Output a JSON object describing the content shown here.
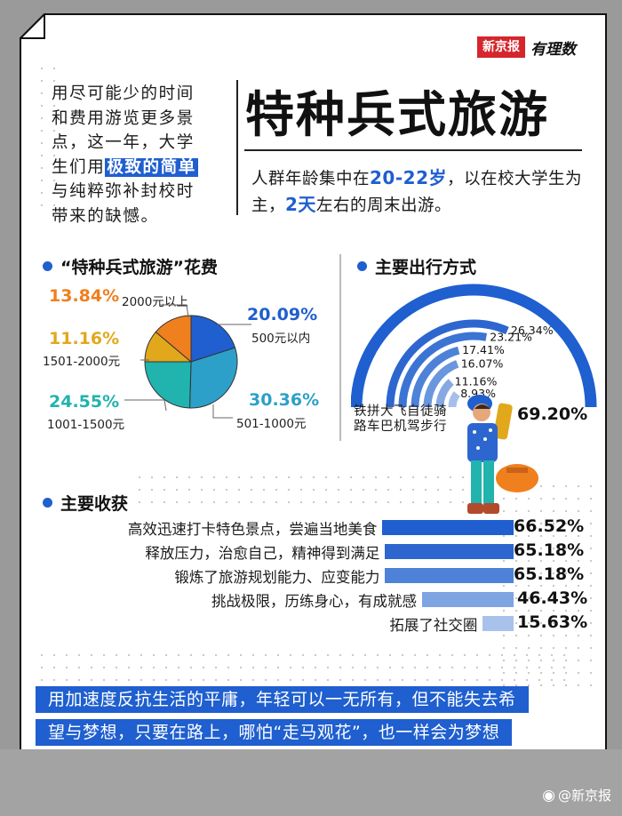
{
  "logo": {
    "brand": "新京报",
    "sub": "有理数"
  },
  "intro": {
    "lines": [
      "用尽可能少的时间",
      "和费用游览更多景",
      "点，这一年，大学"
    ],
    "line4_pre": "生们用",
    "line4_hl": "极致的简单",
    "lines_after": [
      "与纯粹弥补封校时",
      "带来的缺憾。"
    ]
  },
  "title": "特种兵式旅游",
  "subtitle": {
    "p1": "人群年龄集中在",
    "age": "20-22岁",
    "p2": "，以在校大学生为主，",
    "days": "2天",
    "p3": "左右的周末出游。"
  },
  "colors": {
    "blue": "#1f5fcf",
    "orange": "#f07f1e",
    "gold": "#e2a81c",
    "teal": "#21b3ae"
  },
  "spend": {
    "heading": "“特种兵式旅游”花费",
    "chart_data": {
      "type": "pie",
      "slices": [
        {
          "label": "500元以内",
          "value": 20.09,
          "display": "20.09%",
          "color": "#1f5fcf"
        },
        {
          "label": "501-1000元",
          "value": 30.36,
          "display": "30.36%",
          "color": "#2da0c9"
        },
        {
          "label": "1001-1500元",
          "value": 24.55,
          "display": "24.55%",
          "color": "#21b3ae"
        },
        {
          "label": "1501-2000元",
          "value": 11.16,
          "display": "11.16%",
          "color": "#e2a81c"
        },
        {
          "label": "2000元以上",
          "value": 13.84,
          "display": "13.84%",
          "color": "#f07f1e"
        }
      ]
    }
  },
  "travel": {
    "heading": "主要出行方式",
    "chart_data": {
      "type": "bar",
      "layout": "radial",
      "categories": [
        "铁",
        "拼",
        "大",
        "飞",
        "自",
        "徒",
        "骑",
        "路",
        "车",
        "巴",
        "机",
        "驾",
        "步",
        "行"
      ],
      "modes": [
        "铁路",
        "拼车",
        "大巴",
        "飞机",
        "自驾",
        "徒步",
        "骑行"
      ],
      "values": [
        69.2,
        26.34,
        23.21,
        17.41,
        16.07,
        11.16,
        8.93
      ],
      "labels": [
        "69.20%",
        "26.34%",
        "23.21%",
        "17.41%",
        "16.07%",
        "11.16%",
        "8.93%"
      ],
      "row1": "铁拼大飞自徒骑",
      "row2": "路车巴机驾步行"
    }
  },
  "gains": {
    "heading": "主要收获",
    "chart_data": {
      "type": "bar",
      "orientation": "horizontal",
      "categories": [
        "高效迅速打卡特色景点，尝遍当地美食",
        "释放压力，治愈自己，精神得到满足",
        "锻炼了旅游规划能力、应变能力",
        "挑战极限，历练身心，有成就感",
        "拓展了社交圈"
      ],
      "values": [
        66.52,
        65.18,
        65.18,
        46.43,
        15.63
      ],
      "labels": [
        "66.52%",
        "65.18%",
        "65.18%",
        "46.43%",
        "15.63%"
      ],
      "colors": [
        "#1f5fcf",
        "#2d66cf",
        "#4d82d8",
        "#7fa4e2",
        "#a9c2ec"
      ]
    }
  },
  "banner": {
    "line1": "用加速度反抗生活的平庸，年轻可以一无所有，但不能失去希",
    "line2": "望与梦想，只要在路上，哪怕“走马观花”，也一样会为梦想"
  },
  "watermark": "@新京报"
}
